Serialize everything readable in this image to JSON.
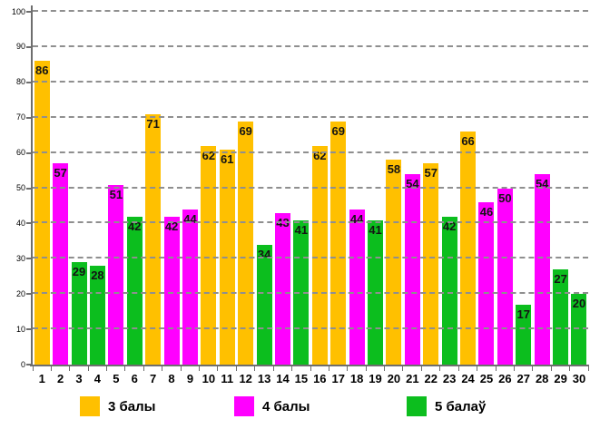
{
  "chart_data": {
    "type": "bar",
    "title": "",
    "xlabel": "",
    "ylabel": "",
    "ylim": [
      0,
      100
    ],
    "y_ticks": [
      0,
      10,
      20,
      30,
      40,
      50,
      60,
      70,
      80,
      90,
      100
    ],
    "grid": "horizontal-dashed",
    "legend_position": "bottom",
    "categories": [
      "1",
      "2",
      "3",
      "4",
      "5",
      "6",
      "7",
      "8",
      "9",
      "10",
      "11",
      "12",
      "13",
      "14",
      "15",
      "16",
      "17",
      "18",
      "19",
      "20",
      "21",
      "22",
      "23",
      "24",
      "25",
      "26",
      "27",
      "28",
      "29",
      "30"
    ],
    "series_legend": [
      {
        "key": "3",
        "label": "3 балы",
        "color": "#FFC000"
      },
      {
        "key": "4",
        "label": "4 балы",
        "color": "#FF00FF"
      },
      {
        "key": "5",
        "label": "5 балаў",
        "color": "#0CBE1E"
      }
    ],
    "bars": [
      {
        "category": "1",
        "value": 86,
        "series": "3"
      },
      {
        "category": "2",
        "value": 57,
        "series": "4"
      },
      {
        "category": "3",
        "value": 29,
        "series": "5"
      },
      {
        "category": "4",
        "value": 28,
        "series": "5"
      },
      {
        "category": "5",
        "value": 51,
        "series": "4"
      },
      {
        "category": "6",
        "value": 42,
        "series": "5"
      },
      {
        "category": "7",
        "value": 71,
        "series": "3"
      },
      {
        "category": "8",
        "value": 42,
        "series": "4"
      },
      {
        "category": "9",
        "value": 44,
        "series": "4"
      },
      {
        "category": "10",
        "value": 62,
        "series": "3"
      },
      {
        "category": "11",
        "value": 61,
        "series": "3"
      },
      {
        "category": "12",
        "value": 69,
        "series": "3"
      },
      {
        "category": "13",
        "value": 34,
        "series": "5"
      },
      {
        "category": "14",
        "value": 43,
        "series": "4"
      },
      {
        "category": "15",
        "value": 41,
        "series": "5"
      },
      {
        "category": "16",
        "value": 62,
        "series": "3"
      },
      {
        "category": "17",
        "value": 69,
        "series": "3"
      },
      {
        "category": "18",
        "value": 44,
        "series": "4"
      },
      {
        "category": "19",
        "value": 41,
        "series": "5"
      },
      {
        "category": "20",
        "value": 58,
        "series": "3"
      },
      {
        "category": "21",
        "value": 54,
        "series": "4"
      },
      {
        "category": "22",
        "value": 57,
        "series": "3"
      },
      {
        "category": "23",
        "value": 42,
        "series": "5"
      },
      {
        "category": "24",
        "value": 66,
        "series": "3"
      },
      {
        "category": "25",
        "value": 46,
        "series": "4"
      },
      {
        "category": "26",
        "value": 50,
        "series": "4"
      },
      {
        "category": "27",
        "value": 17,
        "series": "5"
      },
      {
        "category": "28",
        "value": 54,
        "series": "4"
      },
      {
        "category": "29",
        "value": 27,
        "series": "5"
      },
      {
        "category": "30",
        "value": 20,
        "series": "5"
      }
    ]
  }
}
